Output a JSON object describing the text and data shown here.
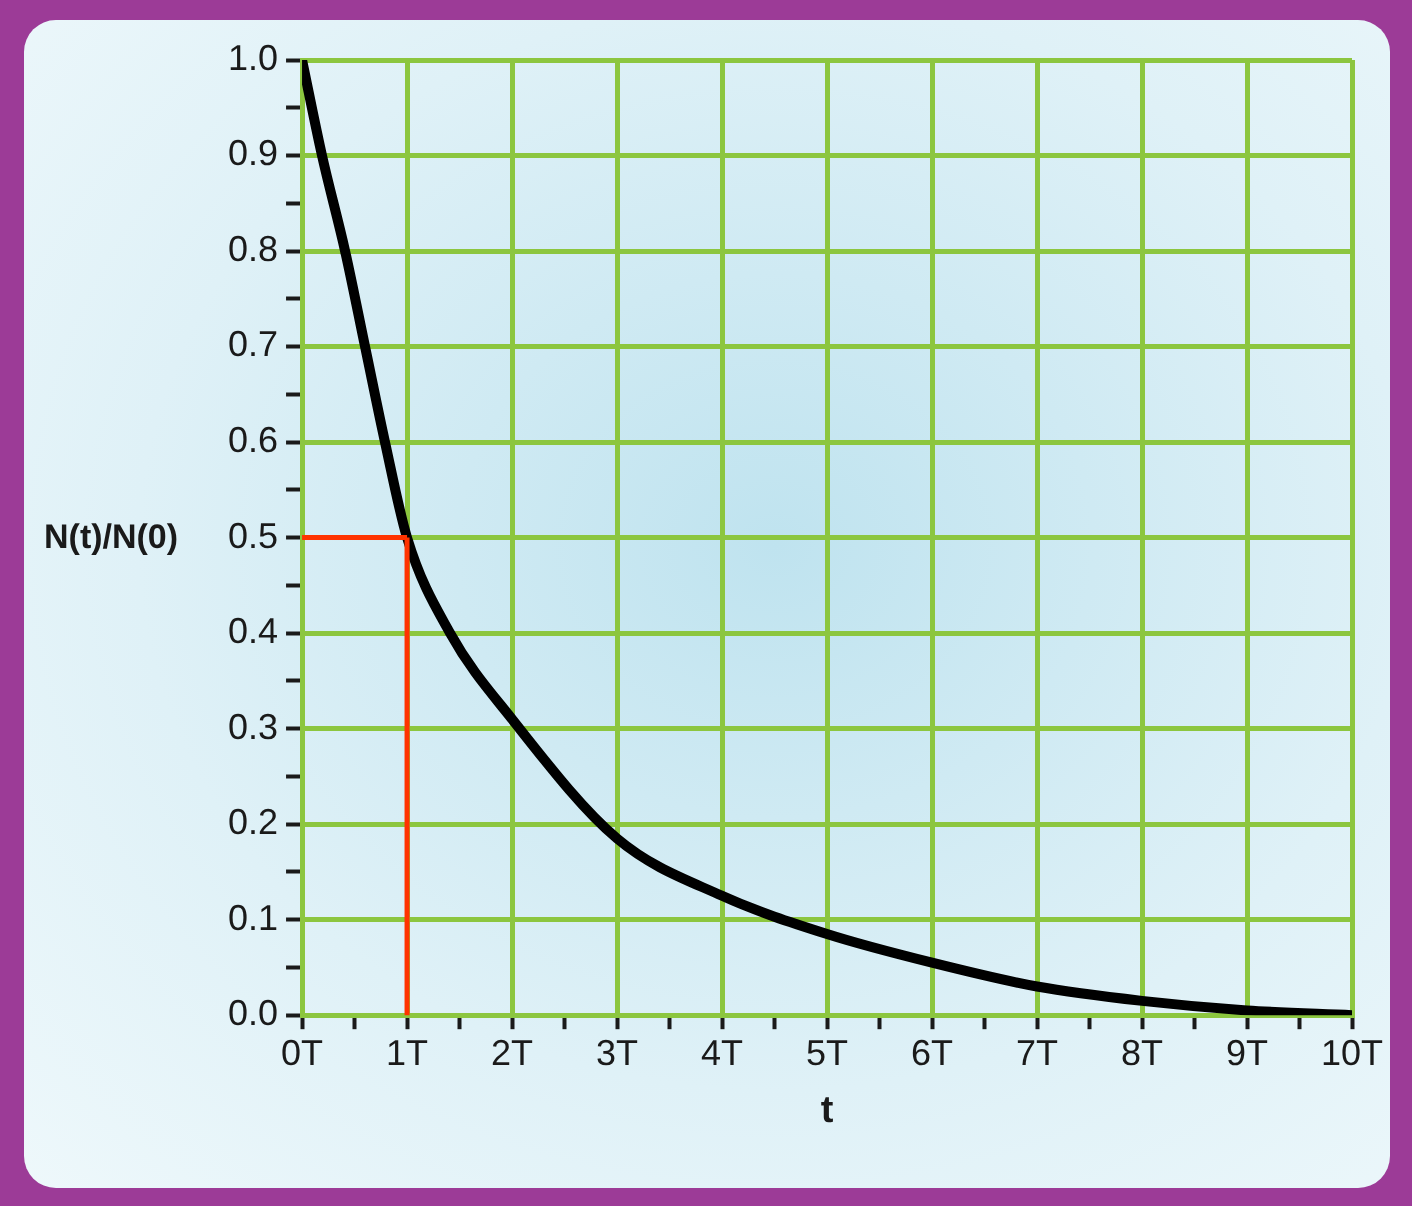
{
  "chart_data": {
    "type": "line",
    "xlabel": "t",
    "ylabel": "N(t)/N(0)",
    "x": [
      0,
      0.19,
      0.41,
      0.6,
      0.79,
      1,
      1.41,
      2,
      3,
      4,
      5,
      6,
      7,
      8,
      9,
      10
    ],
    "series": [
      {
        "color": "#000000",
        "values": [
          1,
          0.9,
          0.8,
          0.7,
          0.6,
          0.5,
          0.4,
          0.31,
          0.185,
          0.125,
          0.085,
          0.055,
          0.03,
          0.015,
          0.005,
          0
        ]
      }
    ],
    "xlim": [
      0,
      10
    ],
    "xticks": [
      {
        "value": 0,
        "label": "0T"
      },
      {
        "value": 0.5,
        "label": null
      },
      {
        "value": 1,
        "label": "1T"
      },
      {
        "value": 1.5,
        "label": null
      },
      {
        "value": 2,
        "label": "2T"
      },
      {
        "value": 2.5,
        "label": null
      },
      {
        "value": 3,
        "label": "3T"
      },
      {
        "value": 3.5,
        "label": null
      },
      {
        "value": 4,
        "label": "4T"
      },
      {
        "value": 4.5,
        "label": null
      },
      {
        "value": 5,
        "label": "5T"
      },
      {
        "value": 5.5,
        "label": null
      },
      {
        "value": 6,
        "label": "6T"
      },
      {
        "value": 6.5,
        "label": null
      },
      {
        "value": 7,
        "label": "7T"
      },
      {
        "value": 7.5,
        "label": null
      },
      {
        "value": 8,
        "label": "8T"
      },
      {
        "value": 8.5,
        "label": null
      },
      {
        "value": 9,
        "label": "9T"
      },
      {
        "value": 9.5,
        "label": null
      },
      {
        "value": 10,
        "label": "10T"
      }
    ],
    "ylim": [
      0,
      1
    ],
    "yticks": [
      {
        "value": 0,
        "label": "0.0"
      },
      {
        "value": 0.05,
        "label": null
      },
      {
        "value": 0.1,
        "label": "0.1"
      },
      {
        "value": 0.15,
        "label": null
      },
      {
        "value": 0.2,
        "label": "0.2"
      },
      {
        "value": 0.25,
        "label": null
      },
      {
        "value": 0.3,
        "label": "0.3"
      },
      {
        "value": 0.35,
        "label": null
      },
      {
        "value": 0.4,
        "label": "0.4"
      },
      {
        "value": 0.45,
        "label": null
      },
      {
        "value": 0.5,
        "label": "0.5"
      },
      {
        "value": 0.55,
        "label": null
      },
      {
        "value": 0.6,
        "label": "0.6"
      },
      {
        "value": 0.65,
        "label": null
      },
      {
        "value": 0.7,
        "label": "0.7"
      },
      {
        "value": 0.75,
        "label": null
      },
      {
        "value": 0.8,
        "label": "0.8"
      },
      {
        "value": 0.85,
        "label": null
      },
      {
        "value": 0.9,
        "label": "0.9"
      },
      {
        "value": 0.95,
        "label": null
      },
      {
        "value": 1,
        "label": "1.0"
      }
    ],
    "grid": true,
    "legend": false,
    "marker": "none",
    "line_style": "solid",
    "ref_lines": [
      {
        "axis": "y",
        "value": 0.5,
        "color": "#ff3300"
      },
      {
        "axis": "x",
        "value": 1,
        "color": "#ff3300"
      }
    ]
  }
}
